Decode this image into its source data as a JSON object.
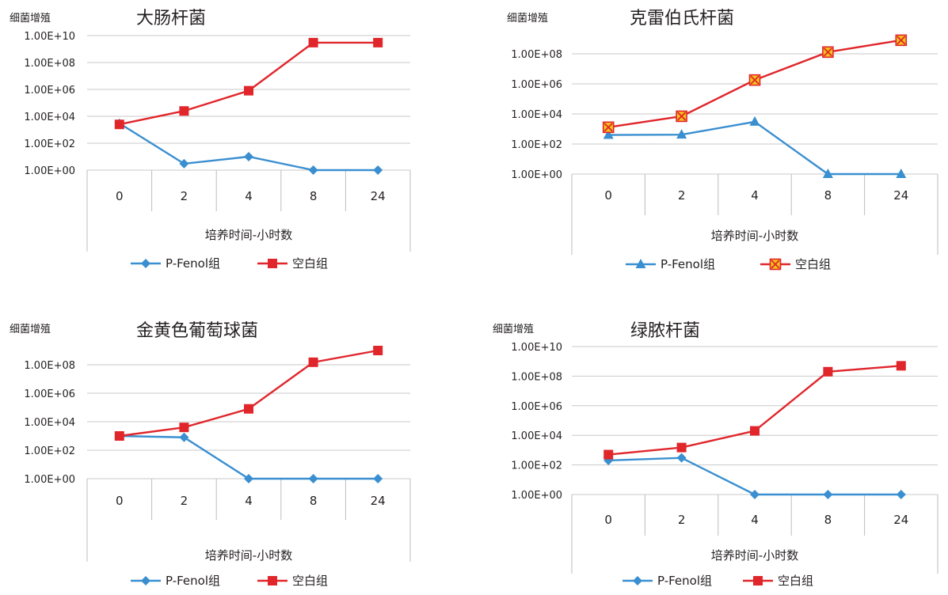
{
  "colors": {
    "pfenol": "#3a8fd0",
    "blank": "#e0262b",
    "blank_marker_cross": "#f4c21b"
  },
  "chart_data": [
    {
      "type": "line",
      "title": "大肠杆菌",
      "ylabel": "细菌增殖",
      "xlabel": "培养时间-小时数",
      "yscale": "log",
      "categories": [
        "0",
        "2",
        "4",
        "8",
        "24"
      ],
      "yticks": [
        "1.00E+00",
        "1.00E+02",
        "1.00E+04",
        "1.00E+06",
        "1.00E+08",
        "1.00E+10"
      ],
      "ylim": [
        1,
        10000000000
      ],
      "grid": true,
      "legend": "bottom",
      "series": [
        {
          "name": "P-Fenol组",
          "marker": "diamond",
          "values": [
            3000,
            3,
            10,
            1,
            1
          ]
        },
        {
          "name": "空白组",
          "marker": "square",
          "values": [
            2500,
            25000,
            800000,
            3000000000,
            3000000000
          ]
        }
      ]
    },
    {
      "type": "line",
      "title": "克雷伯氏杆菌",
      "ylabel": "细菌增殖",
      "xlabel": "培养时间-小时数",
      "yscale": "log",
      "categories": [
        "0",
        "2",
        "4",
        "8",
        "24"
      ],
      "yticks": [
        "1.00E+00",
        "1.00E+02",
        "1.00E+04",
        "1.00E+06",
        "1.00E+08"
      ],
      "ylim": [
        1,
        1000000000
      ],
      "grid": true,
      "legend": "bottom",
      "series": [
        {
          "name": "P-Fenol组",
          "marker": "triangle",
          "values": [
            400,
            420,
            3000,
            1,
            1
          ]
        },
        {
          "name": "空白组",
          "marker": "square-x",
          "values": [
            1300,
            7000,
            1800000,
            130000000,
            800000000
          ]
        }
      ]
    },
    {
      "type": "line",
      "title": "金黄色葡萄球菌",
      "ylabel": "细菌增殖",
      "xlabel": "培养时间-小时数",
      "yscale": "log",
      "categories": [
        "0",
        "2",
        "4",
        "8",
        "24"
      ],
      "yticks": [
        "1.00E+00",
        "1.00E+02",
        "1.00E+04",
        "1.00E+06",
        "1.00E+08"
      ],
      "ylim": [
        1,
        1000000000
      ],
      "grid": true,
      "legend": "bottom",
      "series": [
        {
          "name": "P-Fenol组",
          "marker": "diamond",
          "values": [
            1000,
            800,
            1,
            1,
            1
          ]
        },
        {
          "name": "空白组",
          "marker": "square",
          "values": [
            1000,
            4000,
            80000,
            150000000,
            1000000000
          ]
        }
      ]
    },
    {
      "type": "line",
      "title": "绿脓杆菌",
      "ylabel": "细菌增殖",
      "xlabel": "培养时间-小时数",
      "yscale": "log",
      "categories": [
        "0",
        "2",
        "4",
        "8",
        "24"
      ],
      "yticks": [
        "1.00E+00",
        "1.00E+02",
        "1.00E+04",
        "1.00E+06",
        "1.00E+08",
        "1.00E+10"
      ],
      "ylim": [
        1,
        10000000000
      ],
      "grid": true,
      "legend": "bottom",
      "series": [
        {
          "name": "P-Fenol组",
          "marker": "diamond",
          "values": [
            200,
            300,
            1,
            1,
            1
          ]
        },
        {
          "name": "空白组",
          "marker": "square",
          "values": [
            500,
            1500,
            20000,
            200000000,
            500000000
          ]
        }
      ]
    }
  ]
}
